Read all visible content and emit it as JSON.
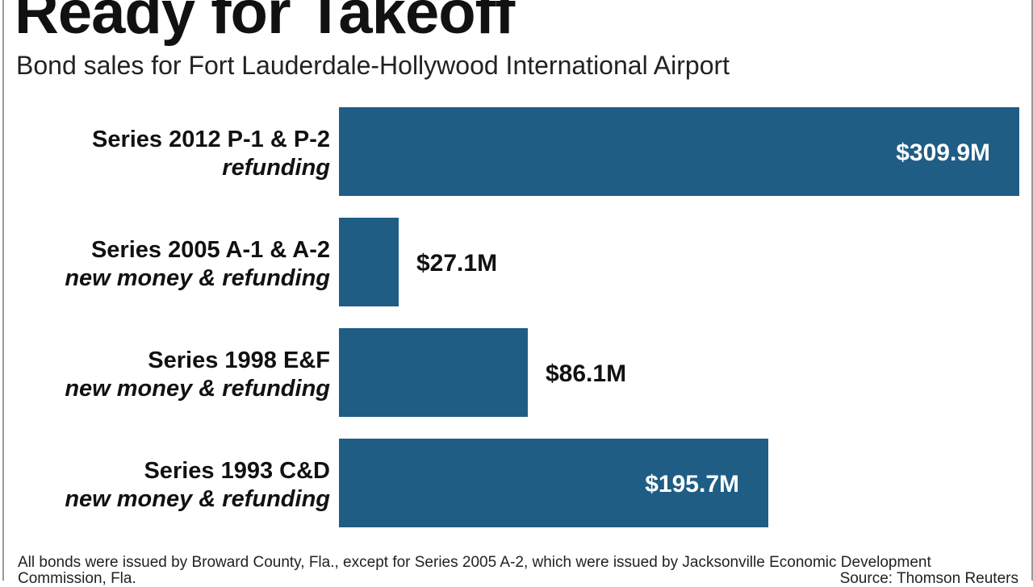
{
  "title": "Ready for Takeoff",
  "subtitle": "Bond sales for Fort Lauderdale-Hollywood International Airport",
  "footnote": "All bonds were issued by Broward County, Fla., except for Series 2005 A-2, which were issued by Jacksonville Economic Development Commission, Fla.",
  "source": "Source: Thomson Reuters",
  "colors": {
    "bar": "#1f5d85",
    "value_inside": "#ffffff",
    "value_outside": "#111111"
  },
  "chart_data": {
    "type": "bar",
    "orientation": "horizontal",
    "categories": [
      "Series 2012 P-1 & P-2",
      "Series 2005 A-1 & A-2",
      "Series 1998 E&F",
      "Series 1993 C&D"
    ],
    "category_sublabels": [
      "refunding",
      "new money & refunding",
      "new money & refunding",
      "new money & refunding"
    ],
    "values": [
      309.9,
      27.1,
      86.1,
      195.7
    ],
    "value_labels": [
      "$309.9M",
      "$27.1M",
      "$86.1M",
      "$195.7M"
    ],
    "unit": "$M",
    "xlim": [
      0,
      309.9
    ],
    "grid": false,
    "legend": "none"
  }
}
